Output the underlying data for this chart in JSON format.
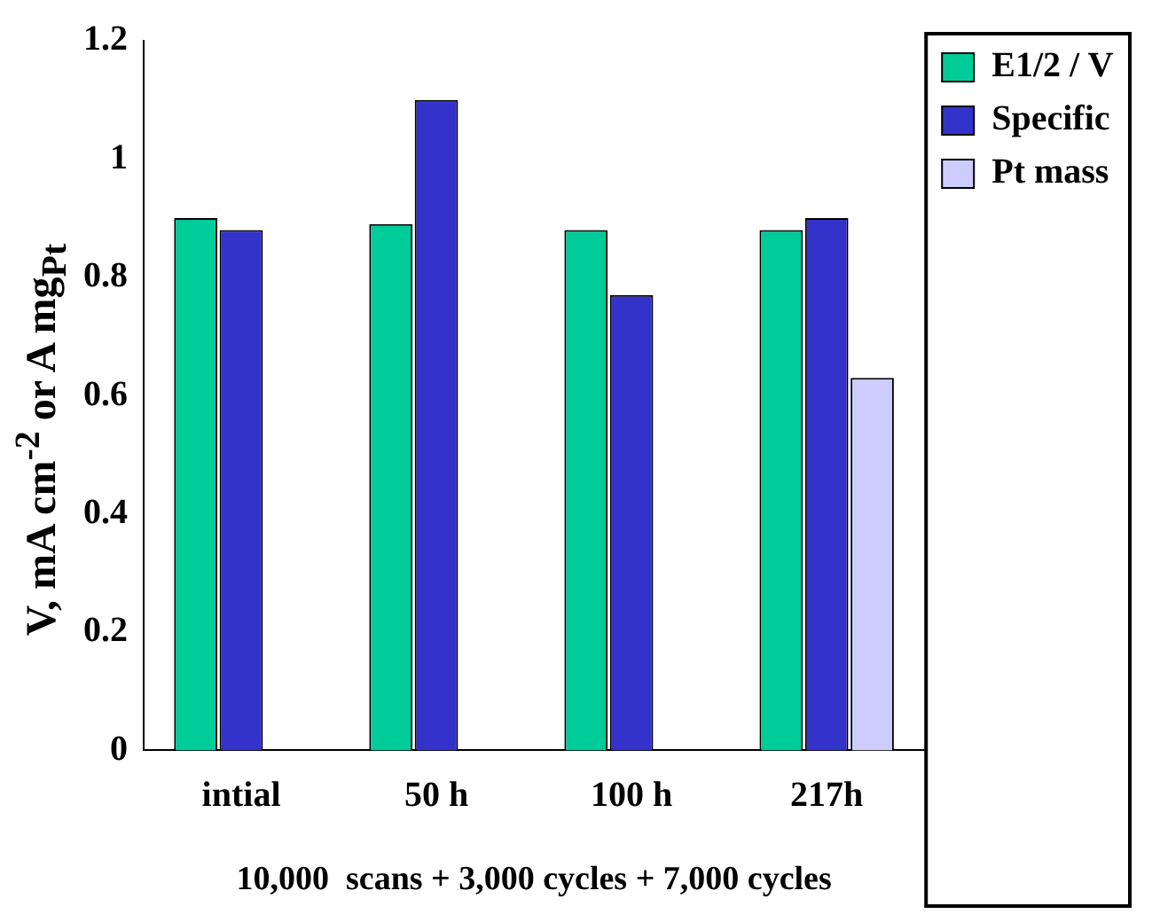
{
  "chart_data": {
    "type": "bar",
    "xlabel": "10,000  scans + 3,000 cycles + 7,000 cycles",
    "ylabel": "V, mA cm$^{-2}$ or A mg$_{Pt}$",
    "categories": [
      "intial",
      "50 h",
      "100 h",
      "217h"
    ],
    "series": [
      {
        "name": "E1/2 / V",
        "color": "#00cc99",
        "values": [
          0.9,
          0.89,
          0.88,
          0.88
        ]
      },
      {
        "name": "Specific",
        "color": "#3333cc",
        "values": [
          0.88,
          1.1,
          0.77,
          0.9
        ]
      },
      {
        "name": "Pt mass",
        "color": "#ccccff",
        "values": [
          null,
          null,
          null,
          0.63
        ]
      }
    ],
    "ylim": [
      0,
      1.2
    ],
    "yticks": [
      {
        "value": 0,
        "label": "0"
      },
      0.2,
      0.4,
      0.6,
      0.8,
      {
        "value": 1,
        "label": "1"
      },
      1.2
    ],
    "grid": false,
    "legend": "top right"
  }
}
